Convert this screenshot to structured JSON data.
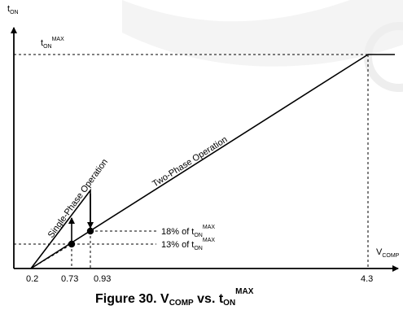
{
  "figure": {
    "y_axis_label": {
      "main": "t",
      "sub": "ON"
    },
    "x_axis_label": {
      "main": "V",
      "sub": "COMP"
    },
    "max_label": {
      "main": "t",
      "sub": "ON",
      "sup": "MAX"
    },
    "x_ticks": [
      "0.2",
      "0.73",
      "0.93",
      "4.3"
    ],
    "single_phase_label": "Single-Phase Operation",
    "two_phase_label": "Two-Phase Operation",
    "annotation_18": {
      "prefix": "18% of t",
      "sub": "ON",
      "sup": "MAX"
    },
    "annotation_13": {
      "prefix": "13% of t",
      "sub": "ON",
      "sup": "MAX"
    },
    "caption": {
      "prefix": "Figure 30. V",
      "sub1": "COMP",
      "middle": " vs. t",
      "sub2": "ON",
      "sup": "MAX"
    },
    "colors": {
      "ink": "#000000",
      "watermark": "#f1f1f1"
    }
  }
}
